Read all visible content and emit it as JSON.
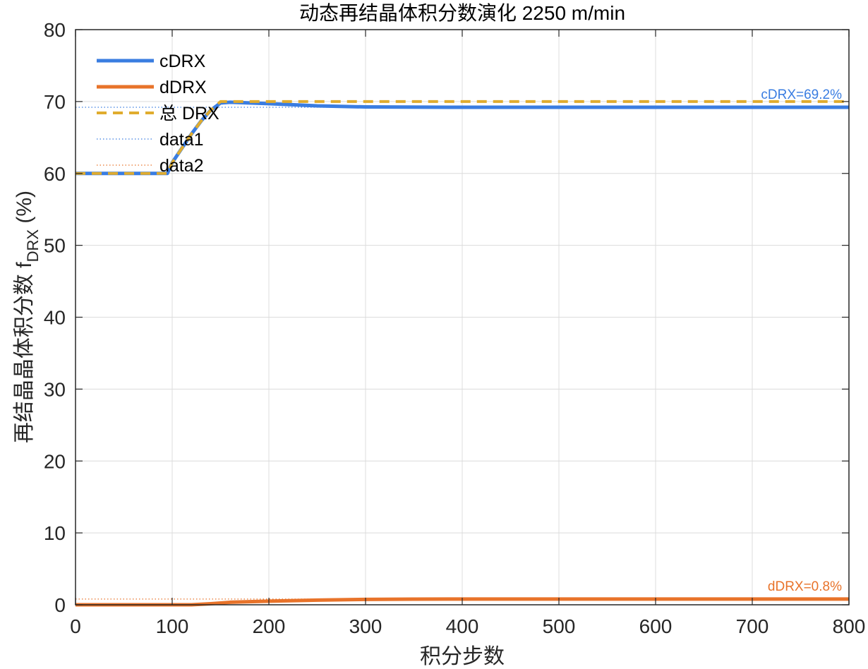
{
  "chart_data": {
    "type": "line",
    "title": "动态再结晶体积分数演化   2250 m/min",
    "xlabel": "积分步数",
    "ylabel_main": "再结晶晶体积分数 f",
    "ylabel_sub": "DRX",
    "ylabel_unit": " (%)",
    "xlim": [
      0,
      800
    ],
    "ylim": [
      0,
      80
    ],
    "xticks": [
      0,
      100,
      200,
      300,
      400,
      500,
      600,
      700,
      800
    ],
    "yticks": [
      0,
      10,
      20,
      30,
      40,
      50,
      60,
      70,
      80
    ],
    "grid": true,
    "legend_position": "top-left",
    "series": [
      {
        "name": "cDRX",
        "color": "#3a7de1",
        "style": "solid",
        "x": [
          0,
          95,
          100,
          110,
          120,
          130,
          140,
          150,
          160,
          200,
          250,
          300,
          400,
          500,
          600,
          700,
          800
        ],
        "y": [
          60,
          60,
          61.5,
          63.5,
          65.5,
          67.3,
          68.8,
          69.8,
          69.9,
          69.7,
          69.4,
          69.25,
          69.2,
          69.2,
          69.2,
          69.2,
          69.2
        ]
      },
      {
        "name": "dDRX",
        "color": "#e8732a",
        "style": "solid",
        "x": [
          0,
          100,
          120,
          140,
          160,
          200,
          250,
          300,
          350,
          400,
          500,
          600,
          700,
          800
        ],
        "y": [
          0,
          0,
          0,
          0.15,
          0.35,
          0.5,
          0.65,
          0.75,
          0.78,
          0.8,
          0.8,
          0.8,
          0.8,
          0.8
        ]
      },
      {
        "name": "总 DRX",
        "color": "#e0ac2e",
        "style": "dashed",
        "x": [
          0,
          95,
          100,
          110,
          120,
          130,
          140,
          150,
          800
        ],
        "y": [
          60,
          60,
          61.5,
          63.5,
          65.5,
          67.3,
          68.8,
          70,
          70
        ]
      },
      {
        "name": "data1",
        "color": "#3a7de1",
        "style": "dotted",
        "x": [
          0,
          800
        ],
        "y": [
          69.2,
          69.2
        ]
      },
      {
        "name": "data2",
        "color": "#e8732a",
        "style": "dotted",
        "x": [
          0,
          800
        ],
        "y": [
          0.8,
          0.8
        ]
      }
    ],
    "annotations": [
      {
        "text": "cDRX=69.2%",
        "x": 800,
        "y": 69.2,
        "color": "#3a7de1"
      },
      {
        "text": "dDRX=0.8%",
        "x": 800,
        "y": 0.8,
        "color": "#e8732a"
      }
    ]
  }
}
